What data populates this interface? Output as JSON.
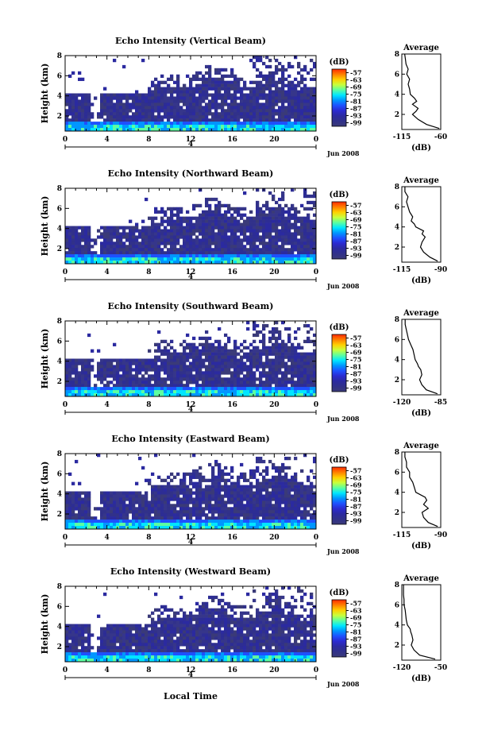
{
  "figure": {
    "footer_label": "Local Time",
    "heatmap_xlabel": "Height (km)"
  },
  "colorbar": {
    "unit": "(dB)",
    "tick_labels": [
      "-57",
      "-63",
      "-69",
      "-75",
      "-81",
      "-87",
      "-93",
      "-99"
    ],
    "colors": [
      "#ff2a00",
      "#ff7f00",
      "#ffd000",
      "#c8ff3c",
      "#5cffa0",
      "#00e6ff",
      "#0096ff",
      "#1e50ff",
      "#2b2ad0",
      "#2b2aa0",
      "#31318a",
      "#3a3a78"
    ]
  },
  "average": {
    "title": "Average",
    "xlabel": "(dB)"
  },
  "x_axis": {
    "tick_labels": [
      "0",
      "4",
      "8",
      "12",
      "16",
      "20",
      "0"
    ],
    "date_tick_label": "4",
    "date_label": "Jun 2008"
  },
  "y_axis": {
    "tick_labels": [
      "2",
      "4",
      "6",
      "8"
    ]
  },
  "chart_data": [
    {
      "type": "heatmap",
      "title": "Echo Intensity (Vertical Beam)",
      "ylabel": "Height (km)",
      "x": [
        0,
        24
      ],
      "xticks": [
        0,
        4,
        8,
        12,
        16,
        20,
        24
      ],
      "ylim": [
        0.5,
        8
      ],
      "yticks": [
        2,
        4,
        6,
        8
      ],
      "clim": [
        -99,
        -57
      ],
      "colorbar_label": "(dB)",
      "average_profile": {
        "title": "Average",
        "xlabel": "(dB)",
        "xlim": [
          -115,
          -60
        ],
        "xtick_labels": [
          "-115",
          "-60"
        ],
        "height": [
          0.6,
          1.0,
          1.5,
          2.0,
          2.3,
          2.6,
          3.0,
          3.3,
          3.6,
          4.0,
          4.5,
          5.0,
          5.5,
          6.0,
          6.5,
          7.0,
          7.5,
          8.0
        ],
        "db": [
          -62,
          -80,
          -92,
          -100,
          -95,
          -92,
          -100,
          -94,
          -97,
          -103,
          -104,
          -106,
          -104,
          -108,
          -106,
          -109,
          -110,
          -111
        ]
      }
    },
    {
      "type": "heatmap",
      "title": "Echo Intensity (Northward Beam)",
      "ylabel": "Height (km)",
      "x": [
        0,
        24
      ],
      "xticks": [
        0,
        4,
        8,
        12,
        16,
        20,
        24
      ],
      "ylim": [
        0.5,
        8
      ],
      "yticks": [
        2,
        4,
        6,
        8
      ],
      "clim": [
        -99,
        -57
      ],
      "colorbar_label": "(dB)",
      "average_profile": {
        "title": "Average",
        "xlabel": "(dB)",
        "xlim": [
          -115,
          -90
        ],
        "xtick_labels": [
          "-115",
          "-90"
        ],
        "height": [
          0.6,
          1.0,
          1.5,
          2.0,
          2.5,
          3.0,
          3.3,
          3.6,
          4.0,
          4.3,
          4.6,
          5.0,
          5.5,
          6.0,
          6.5,
          7.0,
          7.5,
          8.0
        ],
        "db": [
          -92,
          -97,
          -101,
          -103,
          -102,
          -100,
          -102,
          -101,
          -106,
          -107,
          -109,
          -108,
          -110,
          -111,
          -112,
          -111,
          -113,
          -113
        ]
      }
    },
    {
      "type": "heatmap",
      "title": "Echo Intensity (Southward Beam)",
      "ylabel": "Height (km)",
      "x": [
        0,
        24
      ],
      "xticks": [
        0,
        4,
        8,
        12,
        16,
        20,
        24
      ],
      "ylim": [
        0.5,
        8
      ],
      "yticks": [
        2,
        4,
        6,
        8
      ],
      "clim": [
        -99,
        -57
      ],
      "colorbar_label": "(dB)",
      "average_profile": {
        "title": "Average",
        "xlabel": "(dB)",
        "xlim": [
          -120,
          -85
        ],
        "xtick_labels": [
          "-120",
          "-85"
        ],
        "height": [
          0.6,
          1.0,
          1.5,
          2.0,
          2.5,
          3.0,
          3.3,
          3.6,
          4.0,
          4.5,
          5.0,
          5.5,
          6.0,
          6.5,
          7.0,
          7.5,
          8.0
        ],
        "db": [
          -88,
          -98,
          -102,
          -104,
          -102,
          -103,
          -105,
          -106,
          -108,
          -109,
          -110,
          -112,
          -114,
          -115,
          -116,
          -117,
          -117
        ]
      }
    },
    {
      "type": "heatmap",
      "title": "Echo Intensity (Eastward Beam)",
      "ylabel": "Height (km)",
      "x": [
        0,
        24
      ],
      "xticks": [
        0,
        4,
        8,
        12,
        16,
        20,
        24
      ],
      "ylim": [
        0.5,
        8
      ],
      "yticks": [
        2,
        4,
        6,
        8
      ],
      "clim": [
        -99,
        -57
      ],
      "colorbar_label": "(dB)",
      "average_profile": {
        "title": "Average",
        "xlabel": "(dB)",
        "xlim": [
          -115,
          -90
        ],
        "xtick_labels": [
          "-115",
          "-90"
        ],
        "height": [
          0.6,
          1.0,
          1.5,
          2.0,
          2.4,
          2.8,
          3.2,
          3.5,
          4.0,
          4.5,
          5.0,
          5.5,
          6.0,
          6.5,
          7.0,
          7.5,
          8.0
        ],
        "db": [
          -92,
          -98,
          -101,
          -102,
          -98,
          -101,
          -99,
          -100,
          -106,
          -107,
          -108,
          -110,
          -110,
          -112,
          -112,
          -113,
          -113
        ]
      }
    },
    {
      "type": "heatmap",
      "title": "Echo Intensity (Westward Beam)",
      "ylabel": "Height (km)",
      "x": [
        0,
        24
      ],
      "xticks": [
        0,
        4,
        8,
        12,
        16,
        20,
        24
      ],
      "ylim": [
        0.5,
        8
      ],
      "yticks": [
        2,
        4,
        6,
        8
      ],
      "clim": [
        -99,
        -57
      ],
      "colorbar_label": "(dB)",
      "average_profile": {
        "title": "Average",
        "xlabel": "(dB)",
        "xlim": [
          -120,
          -50
        ],
        "xtick_labels": [
          "-120",
          "-50"
        ],
        "height": [
          0.6,
          1.0,
          1.5,
          2.0,
          2.5,
          3.0,
          3.3,
          3.6,
          4.0,
          4.5,
          5.0,
          5.5,
          6.0,
          6.5,
          7.0,
          7.5,
          8.0
        ],
        "db": [
          -60,
          -88,
          -98,
          -103,
          -100,
          -102,
          -104,
          -105,
          -110,
          -112,
          -113,
          -114,
          -116,
          -116,
          -117,
          -117,
          -117
        ]
      }
    }
  ]
}
